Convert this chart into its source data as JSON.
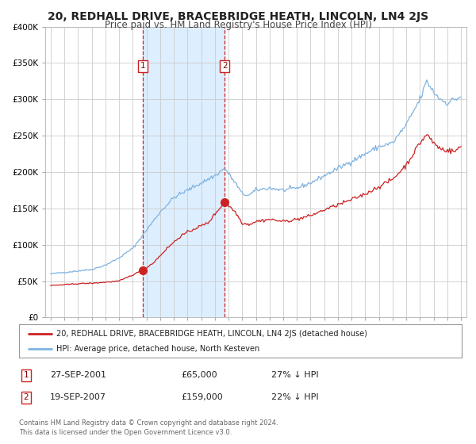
{
  "title": "20, REDHALL DRIVE, BRACEBRIDGE HEATH, LINCOLN, LN4 2JS",
  "subtitle": "Price paid vs. HM Land Registry's House Price Index (HPI)",
  "ylim": [
    0,
    400000
  ],
  "yticks": [
    0,
    50000,
    100000,
    150000,
    200000,
    250000,
    300000,
    350000,
    400000
  ],
  "xlim_start": 1994.6,
  "xlim_end": 2025.4,
  "background_color": "#ffffff",
  "plot_bg_color": "#ffffff",
  "grid_color": "#cccccc",
  "hpi_line_color": "#7fb3e0",
  "price_line_color": "#cc2222",
  "shade_color": "#ddeeff",
  "vline_color": "#cc2222",
  "sale1_date": 2001.74,
  "sale1_price": 65000,
  "sale2_date": 2007.72,
  "sale2_price": 159000,
  "legend_line1": "20, REDHALL DRIVE, BRACEBRIDGE HEATH, LINCOLN, LN4 2JS (detached house)",
  "legend_line2": "HPI: Average price, detached house, North Kesteven",
  "table_row1_num": "1",
  "table_row1_date": "27-SEP-2001",
  "table_row1_price": "£65,000",
  "table_row1_hpi": "27% ↓ HPI",
  "table_row2_num": "2",
  "table_row2_date": "19-SEP-2007",
  "table_row2_price": "£159,000",
  "table_row2_hpi": "22% ↓ HPI",
  "footer": "Contains HM Land Registry data © Crown copyright and database right 2024.\nThis data is licensed under the Open Government Licence v3.0.",
  "title_fontsize": 10,
  "subtitle_fontsize": 8.5
}
